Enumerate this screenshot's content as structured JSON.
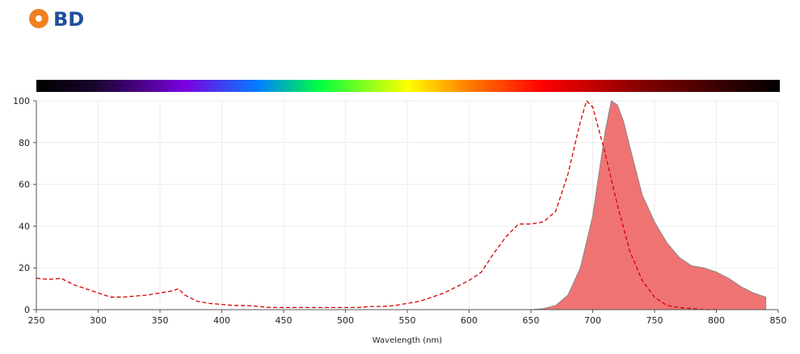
{
  "logo": "BD",
  "chart_data": {
    "type": "line",
    "x_label": "Wavelength (nm)",
    "xlim": [
      250,
      850
    ],
    "xticks": [
      250,
      300,
      350,
      400,
      450,
      500,
      550,
      600,
      650,
      700,
      750,
      800,
      850
    ],
    "ylim": [
      0,
      100
    ],
    "yticks": [
      0,
      20,
      40,
      60,
      80,
      100
    ],
    "grid": true,
    "series": [
      {
        "style": "dashed",
        "color": "#d40000",
        "x": [
          250,
          260,
          270,
          280,
          290,
          300,
          310,
          320,
          330,
          340,
          350,
          360,
          365,
          370,
          380,
          390,
          400,
          410,
          420,
          430,
          440,
          450,
          460,
          470,
          480,
          490,
          500,
          510,
          520,
          530,
          540,
          550,
          560,
          570,
          580,
          590,
          600,
          610,
          620,
          630,
          640,
          650,
          660,
          670,
          680,
          690,
          695,
          700,
          710,
          720,
          730,
          740,
          750,
          760,
          770,
          780,
          790,
          800
        ],
        "values": [
          15,
          14.5,
          15,
          12,
          10,
          8,
          6,
          6,
          6.5,
          7,
          8,
          9,
          10,
          7,
          4,
          3,
          2.5,
          2,
          2,
          1.5,
          1,
          1,
          1,
          1,
          1,
          1,
          1,
          1,
          1.5,
          1.5,
          2,
          3,
          4,
          6,
          8,
          11,
          14,
          18,
          27,
          35,
          41,
          41,
          42,
          47,
          65,
          90,
          100,
          97,
          75,
          50,
          28,
          14,
          6,
          2,
          1,
          0.5,
          0,
          0
        ]
      },
      {
        "style": "area",
        "color": "#ee6464",
        "x": [
          650,
          660,
          670,
          680,
          690,
          700,
          705,
          710,
          715,
          720,
          725,
          730,
          740,
          750,
          760,
          770,
          780,
          790,
          800,
          810,
          820,
          830,
          840
        ],
        "values": [
          0,
          0.5,
          2,
          7,
          20,
          45,
          65,
          85,
          100,
          98,
          90,
          78,
          55,
          42,
          32,
          25,
          21,
          20,
          18,
          15,
          11,
          8,
          6
        ]
      }
    ]
  }
}
